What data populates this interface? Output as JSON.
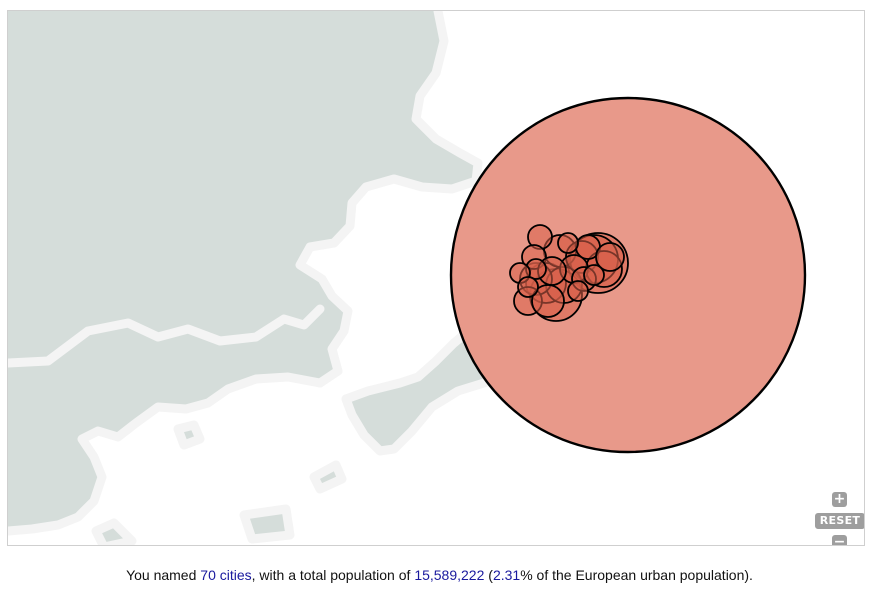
{
  "map": {
    "colors": {
      "land": "#d5ddda",
      "border": "#f4f4f4",
      "sea": "#ffffff",
      "big_circle_fill": "#e8998a",
      "city_fill": "#d9604a",
      "stroke": "#000000"
    },
    "controls": {
      "zoom_in_label": "+",
      "reset_label": "RESET",
      "zoom_out_label": "−"
    }
  },
  "summary": {
    "prefix": "You named ",
    "cities_link": "70 cities",
    "middle": ", with a total population of ",
    "population": "15,589,222",
    "open_paren": " (",
    "percent": "2.31",
    "suffix": "% of the European urban population)."
  }
}
